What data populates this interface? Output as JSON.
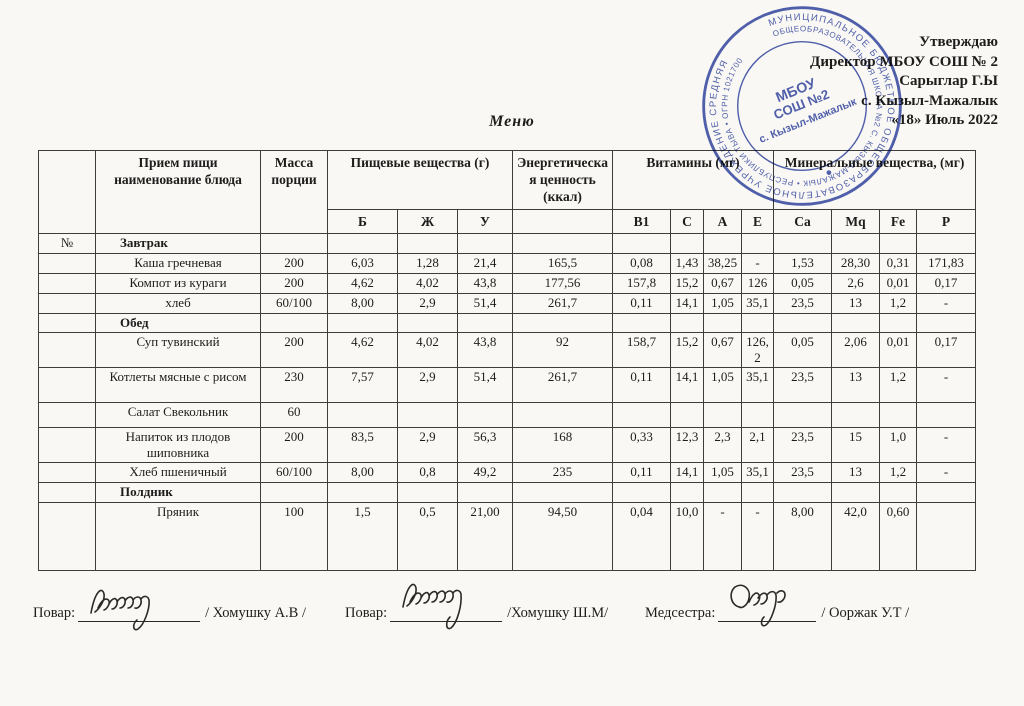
{
  "approval": {
    "line1": "Утверждаю",
    "line2": "Директор МБОУ СОШ № 2",
    "line3": "Сарыглар Г.Ы",
    "line4": "с. Кызыл-Мажалык",
    "line5": "«18»  Июль  2022"
  },
  "stamp": {
    "color": "#2b3f9f",
    "ring_outer": "МУНИЦИПАЛЬНОЕ БЮДЖЕТНОЕ ОБЩЕОБРАЗОВАТЕЛЬНОЕ УЧРЕЖДЕНИЕ СРЕДНЯЯ",
    "ring_inner": "ОБЩЕОБРАЗОВАТЕЛЬНАЯ ШКОЛА №2 С. КЫЗЫЛ-МАЖАЛЫК • РЕСПУБЛИКИ ТЫВА • ОГРН 1021700",
    "center1": "МБОУ",
    "center2": "СОШ №2",
    "center3": "с. Кызыл-Мажалык"
  },
  "title": "Меню",
  "table": {
    "header": {
      "dish": "Прием пищи  наименование блюда",
      "mass": "Масса порции",
      "nutrients": "Пищевые вещества (г)",
      "energy": "Энергетическая ценность  (ккал)",
      "vitamins": "Витамины (мг)",
      "minerals": "Минеральные вещества, (мг)",
      "sub": [
        "Б",
        "Ж",
        "У",
        "B1",
        "C",
        "A",
        "E",
        "Ca",
        "Mq",
        "Fe",
        "P"
      ]
    },
    "rows": [
      {
        "no": "№",
        "dish": "Завтрак",
        "mass": "",
        "section": true,
        "align": "left",
        "cells": [
          "",
          "",
          "",
          "",
          "",
          "",
          "",
          "",
          "",
          "",
          "",
          ""
        ]
      },
      {
        "no": "",
        "dish": "Каша гречневая",
        "mass": "200",
        "section": false,
        "align": "center",
        "bold": true,
        "cells": [
          "6,03",
          "1,28",
          "21,4",
          "165,5",
          "0,08",
          "1,43",
          "38,25",
          "-",
          "1,53",
          "28,30",
          "0,31",
          "171,83"
        ]
      },
      {
        "no": "",
        "dish": "Компот из кураги",
        "mass": "200",
        "section": false,
        "align": "center",
        "bold": true,
        "cells": [
          "4,62",
          "4,02",
          "43,8",
          "177,56",
          "157,8",
          "15,2",
          "0,67",
          "126",
          "0,05",
          "2,6",
          "0,01",
          "0,17"
        ]
      },
      {
        "no": "",
        "dish": "хлеб",
        "mass": "60/100",
        "section": false,
        "align": "center",
        "cells": [
          "8,00",
          "2,9",
          "51,4",
          "261,7",
          "0,11",
          "14,1",
          "1,05",
          "35,1",
          "23,5",
          "13",
          "1,2",
          "-"
        ]
      },
      {
        "no": "",
        "dish": "Обед",
        "mass": "",
        "section": true,
        "align": "left",
        "cells": [
          "",
          "",
          "",
          "",
          "",
          "",
          "",
          "",
          "",
          "",
          "",
          ""
        ]
      },
      {
        "no": "",
        "dish": "Суп тувинский",
        "mass": "200",
        "section": false,
        "align": "left",
        "cells": [
          "4,62",
          "4,02",
          "43,8",
          "92",
          "158,7",
          "15,2",
          "0,67",
          "126,2",
          "0,05",
          "2,06",
          "0,01",
          "0,17"
        ]
      },
      {
        "no": "",
        "dish": "Котлеты мясные  с рисом",
        "mass": "230",
        "section": false,
        "align": "left",
        "cells": [
          "7,57",
          "2,9",
          "51,4",
          "261,7",
          "0,11",
          "14,1",
          "1,05",
          "35,1",
          "23,5",
          "13",
          "1,2",
          "-"
        ]
      },
      {
        "no": "",
        "dish": "Салат Свекольник",
        "mass": "60",
        "section": false,
        "align": "left",
        "cells": [
          "",
          "",
          "",
          "",
          "",
          "",
          "",
          "",
          "",
          "",
          "",
          ""
        ]
      },
      {
        "no": "",
        "dish": "Напиток из плодов шиповника",
        "mass": "200",
        "section": false,
        "align": "left",
        "cells": [
          "83,5",
          "2,9",
          "56,3",
          "168",
          "0,33",
          "12,3",
          "2,3",
          "2,1",
          "23,5",
          "15",
          "1,0",
          "-"
        ]
      },
      {
        "no": "",
        "dish": "Хлеб пшеничный",
        "mass": "60/100",
        "section": false,
        "align": "left",
        "cells": [
          "8,00",
          "0,8",
          "49,2",
          "235",
          "0,11",
          "14,1",
          "1,05",
          "35,1",
          "23,5",
          "13",
          "1,2",
          "-"
        ]
      },
      {
        "no": "",
        "dish": "Полдник",
        "mass": "",
        "section": true,
        "align": "left",
        "cells": [
          "",
          "",
          "",
          "",
          "",
          "",
          "",
          "",
          "",
          "",
          "",
          ""
        ]
      },
      {
        "no": "",
        "dish": "Пряник",
        "mass": "100",
        "section": false,
        "align": "left",
        "cells": [
          "1,5",
          "0,5",
          "21,00",
          "94,50",
          "0,04",
          "10,0",
          "-",
          "-",
          "8,00",
          "42,0",
          "0,60",
          ""
        ]
      }
    ]
  },
  "footer": {
    "cook1_label": "Повар:",
    "cook1_name": "/ Хомушку А.В /",
    "cook2_label": "Повар:",
    "cook2_name": "/Хомушку Ш.М/",
    "nurse_label": "Медсестра:",
    "nurse_name": "/ Ооржак У.Т /"
  }
}
